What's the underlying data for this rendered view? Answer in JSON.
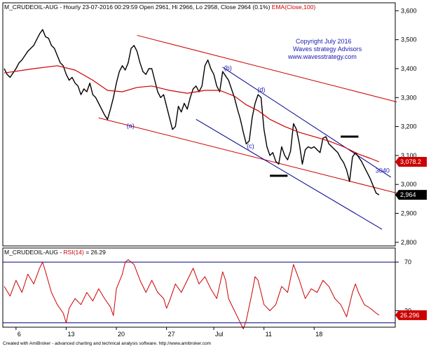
{
  "header": {
    "symbol": "M_CRUDEOIL-AUG",
    "info": " - Hourly 23-07-2016 00:29:59 Open 2961, Hi 2966, Lo 2958, Close 2964 (0.1%)",
    "ema_label": "EMA(Close,100)",
    "ema_color": "#cc0000"
  },
  "copyright": {
    "line1": "Copyright July 2016",
    "line2": "Waves strategy Advisors",
    "line3": "www.wavesstrategy.com",
    "color": "#1a1ab0"
  },
  "rsi_header": {
    "symbol": "M_CRUDEOIL-AUG",
    "sep": " - ",
    "label": "RSI(14)",
    "value_text": " = 26.29"
  },
  "footer": {
    "text": "Created with AmiBroker - advanced charting and technical analysis software. http://www.amibroker.com"
  },
  "price_badges": {
    "ema": "3,078.2",
    "last": "2,964"
  },
  "rsi_badge": "26.296",
  "annotations": [
    {
      "label": "(a)",
      "x": 41.5,
      "y": 3195
    },
    {
      "label": "(b)",
      "x": 74.5,
      "y": 3395
    },
    {
      "label": "(c)",
      "x": 82.2,
      "y": 3125
    },
    {
      "label": "(d)",
      "x": 85.8,
      "y": 3320
    },
    {
      "label": "3040",
      "x": 125.8,
      "y": 3040
    }
  ],
  "colors": {
    "price": "#000000",
    "ema": "#cc0000",
    "upper_channel": "#cc0000",
    "blue_channel": "#000090",
    "rsi": "#cc0000",
    "rsi_levels": "#000080",
    "annotation": "#1a1ab0"
  },
  "chart_data": [
    {
      "type": "line",
      "y_ticks": [
        2800,
        2900,
        3000,
        3100,
        3200,
        3300,
        3400,
        3500,
        3600
      ],
      "y_tick_labels": [
        "2,800",
        "2,900",
        "3,000",
        "3,100",
        "3,200",
        "3,300",
        "3,400",
        "3,500",
        "3,600"
      ],
      "x_ticks": [
        {
          "label": "6",
          "pos": 4
        },
        {
          "label": "13",
          "pos": 21
        },
        {
          "label": "20",
          "pos": 38
        },
        {
          "label": "27",
          "pos": 55
        },
        {
          "label": "Jul",
          "pos": 71
        },
        {
          "label": "11",
          "pos": 88
        },
        {
          "label": "18",
          "pos": 105
        }
      ],
      "xlim": [
        0,
        132
      ],
      "ylim": [
        2790,
        3625
      ],
      "series": [
        {
          "name": "M_CRUDEOIL-AUG",
          "values": [
            [
              0,
              3400
            ],
            [
              1,
              3380
            ],
            [
              2,
              3370
            ],
            [
              3,
              3385
            ],
            [
              4,
              3400
            ],
            [
              5,
              3420
            ],
            [
              6,
              3430
            ],
            [
              7,
              3445
            ],
            [
              8,
              3460
            ],
            [
              9,
              3470
            ],
            [
              10,
              3480
            ],
            [
              11,
              3500
            ],
            [
              12,
              3520
            ],
            [
              13,
              3535
            ],
            [
              14,
              3510
            ],
            [
              15,
              3505
            ],
            [
              16,
              3480
            ],
            [
              17,
              3470
            ],
            [
              18,
              3445
            ],
            [
              19,
              3420
            ],
            [
              20,
              3410
            ],
            [
              21,
              3380
            ],
            [
              22,
              3360
            ],
            [
              23,
              3370
            ],
            [
              24,
              3350
            ],
            [
              25,
              3340
            ],
            [
              26,
              3310
            ],
            [
              27,
              3330
            ],
            [
              28,
              3320
            ],
            [
              29,
              3350
            ],
            [
              30,
              3310
            ],
            [
              31,
              3300
            ],
            [
              32,
              3280
            ],
            [
              33,
              3260
            ],
            [
              34,
              3240
            ],
            [
              35,
              3225
            ],
            [
              36,
              3260
            ],
            [
              37,
              3300
            ],
            [
              38,
              3350
            ],
            [
              39,
              3390
            ],
            [
              40,
              3410
            ],
            [
              41,
              3395
            ],
            [
              42,
              3420
            ],
            [
              43,
              3470
            ],
            [
              44,
              3480
            ],
            [
              45,
              3460
            ],
            [
              46,
              3420
            ],
            [
              47,
              3390
            ],
            [
              48,
              3380
            ],
            [
              49,
              3400
            ],
            [
              50,
              3400
            ],
            [
              51,
              3360
            ],
            [
              52,
              3320
            ],
            [
              53,
              3300
            ],
            [
              54,
              3310
            ],
            [
              55,
              3270
            ],
            [
              56,
              3230
            ],
            [
              57,
              3190
            ],
            [
              58,
              3200
            ],
            [
              59,
              3270
            ],
            [
              60,
              3250
            ],
            [
              61,
              3280
            ],
            [
              62,
              3260
            ],
            [
              63,
              3300
            ],
            [
              64,
              3330
            ],
            [
              65,
              3340
            ],
            [
              66,
              3320
            ],
            [
              67,
              3340
            ],
            [
              68,
              3410
            ],
            [
              69,
              3430
            ],
            [
              70,
              3400
            ],
            [
              71,
              3380
            ],
            [
              72,
              3340
            ],
            [
              73,
              3320
            ],
            [
              74,
              3390
            ],
            [
              75,
              3375
            ],
            [
              76,
              3360
            ],
            [
              77,
              3330
            ],
            [
              78,
              3300
            ],
            [
              79,
              3260
            ],
            [
              80,
              3225
            ],
            [
              81,
              3180
            ],
            [
              82,
              3140
            ],
            [
              83,
              3150
            ],
            [
              84,
              3230
            ],
            [
              85,
              3280
            ],
            [
              86,
              3310
            ],
            [
              87,
              3300
            ],
            [
              88,
              3190
            ],
            [
              89,
              3130
            ],
            [
              90,
              3100
            ],
            [
              91,
              3110
            ],
            [
              92,
              3080
            ],
            [
              93,
              3070
            ],
            [
              94,
              3130
            ],
            [
              95,
              3100
            ],
            [
              96,
              3085
            ],
            [
              97,
              3115
            ],
            [
              98,
              3210
            ],
            [
              99,
              3190
            ],
            [
              100,
              3140
            ],
            [
              101,
              3070
            ],
            [
              102,
              3120
            ],
            [
              103,
              3130
            ],
            [
              104,
              3125
            ],
            [
              105,
              3130
            ],
            [
              106,
              3120
            ],
            [
              107,
              3110
            ],
            [
              108,
              3160
            ],
            [
              109,
              3165
            ],
            [
              110,
              3140
            ],
            [
              111,
              3130
            ],
            [
              112,
              3120
            ],
            [
              113,
              3110
            ],
            [
              114,
              3090
            ],
            [
              115,
              3075
            ],
            [
              116,
              3050
            ],
            [
              117,
              3010
            ],
            [
              118,
              3095
            ],
            [
              119,
              3110
            ],
            [
              120,
              3095
            ],
            [
              121,
              3080
            ],
            [
              122,
              3060
            ],
            [
              123,
              3040
            ],
            [
              124,
              3020
            ],
            [
              125,
              2995
            ],
            [
              126,
              2970
            ],
            [
              127,
              2964
            ]
          ]
        },
        {
          "name": "EMA(Close,100)",
          "values": [
            [
              0,
              3385
            ],
            [
              10,
              3400
            ],
            [
              18,
              3410
            ],
            [
              24,
              3395
            ],
            [
              30,
              3360
            ],
            [
              35,
              3325
            ],
            [
              40,
              3320
            ],
            [
              45,
              3335
            ],
            [
              50,
              3340
            ],
            [
              56,
              3325
            ],
            [
              62,
              3315
            ],
            [
              68,
              3325
            ],
            [
              73,
              3325
            ],
            [
              78,
              3305
            ],
            [
              82,
              3275
            ],
            [
              86,
              3255
            ],
            [
              90,
              3225
            ],
            [
              95,
              3200
            ],
            [
              100,
              3180
            ],
            [
              105,
              3165
            ],
            [
              110,
              3150
            ],
            [
              115,
              3130
            ],
            [
              120,
              3105
            ],
            [
              124,
              3090
            ],
            [
              127,
              3078
            ]
          ]
        }
      ],
      "lines": [
        {
          "name": "upper-channel",
          "from": [
            45,
            3515
          ],
          "to": [
            133,
            3285
          ]
        },
        {
          "name": "lower-channel",
          "from": [
            32,
            3230
          ],
          "to": [
            133,
            2970
          ]
        },
        {
          "name": "blue-upper",
          "from": [
            74,
            3405
          ],
          "to": [
            131,
            3025
          ]
        },
        {
          "name": "blue-lower",
          "from": [
            65,
            3225
          ],
          "to": [
            128,
            2845
          ]
        }
      ],
      "markers": [
        {
          "name": "marker-left",
          "from": [
            90,
            3030
          ],
          "to": [
            96,
            3030
          ]
        },
        {
          "name": "marker-right",
          "from": [
            114,
            3165
          ],
          "to": [
            120,
            3165
          ]
        }
      ]
    },
    {
      "type": "line",
      "title": "RSI(14)",
      "ylim": [
        17,
        81
      ],
      "y_ticks": [
        30,
        70
      ],
      "y_tick_labels": [
        "30",
        "70"
      ],
      "levels": [
        70,
        20
      ],
      "xlim": [
        0,
        132
      ],
      "series": [
        {
          "name": "RSI(14)",
          "values": [
            [
              0,
              50
            ],
            [
              2,
              42
            ],
            [
              4,
              55
            ],
            [
              6,
              45
            ],
            [
              8,
              60
            ],
            [
              10,
              52
            ],
            [
              12,
              65
            ],
            [
              13,
              70
            ],
            [
              14,
              62
            ],
            [
              16,
              45
            ],
            [
              18,
              35
            ],
            [
              20,
              28
            ],
            [
              21,
              20
            ],
            [
              22,
              32
            ],
            [
              24,
              40
            ],
            [
              26,
              35
            ],
            [
              28,
              45
            ],
            [
              30,
              38
            ],
            [
              32,
              48
            ],
            [
              34,
              40
            ],
            [
              36,
              33
            ],
            [
              37,
              26
            ],
            [
              38,
              48
            ],
            [
              40,
              60
            ],
            [
              41,
              70
            ],
            [
              42,
              72
            ],
            [
              44,
              68
            ],
            [
              46,
              55
            ],
            [
              48,
              45
            ],
            [
              50,
              55
            ],
            [
              52,
              45
            ],
            [
              54,
              40
            ],
            [
              55,
              32
            ],
            [
              56,
              38
            ],
            [
              58,
              52
            ],
            [
              60,
              45
            ],
            [
              62,
              55
            ],
            [
              63,
              60
            ],
            [
              64,
              65
            ],
            [
              66,
              52
            ],
            [
              68,
              58
            ],
            [
              70,
              48
            ],
            [
              72,
              40
            ],
            [
              74,
              62
            ],
            [
              75,
              55
            ],
            [
              76,
              40
            ],
            [
              78,
              30
            ],
            [
              80,
              20
            ],
            [
              81,
              15
            ],
            [
              82,
              22
            ],
            [
              84,
              45
            ],
            [
              85,
              58
            ],
            [
              86,
              55
            ],
            [
              88,
              35
            ],
            [
              90,
              30
            ],
            [
              92,
              35
            ],
            [
              94,
              50
            ],
            [
              96,
              45
            ],
            [
              98,
              68
            ],
            [
              100,
              55
            ],
            [
              102,
              40
            ],
            [
              104,
              48
            ],
            [
              106,
              45
            ],
            [
              108,
              55
            ],
            [
              110,
              50
            ],
            [
              112,
              40
            ],
            [
              114,
              35
            ],
            [
              116,
              25
            ],
            [
              118,
              45
            ],
            [
              119,
              52
            ],
            [
              120,
              45
            ],
            [
              122,
              35
            ],
            [
              124,
              32
            ],
            [
              126,
              28
            ],
            [
              127,
              26.29
            ]
          ]
        }
      ]
    }
  ]
}
